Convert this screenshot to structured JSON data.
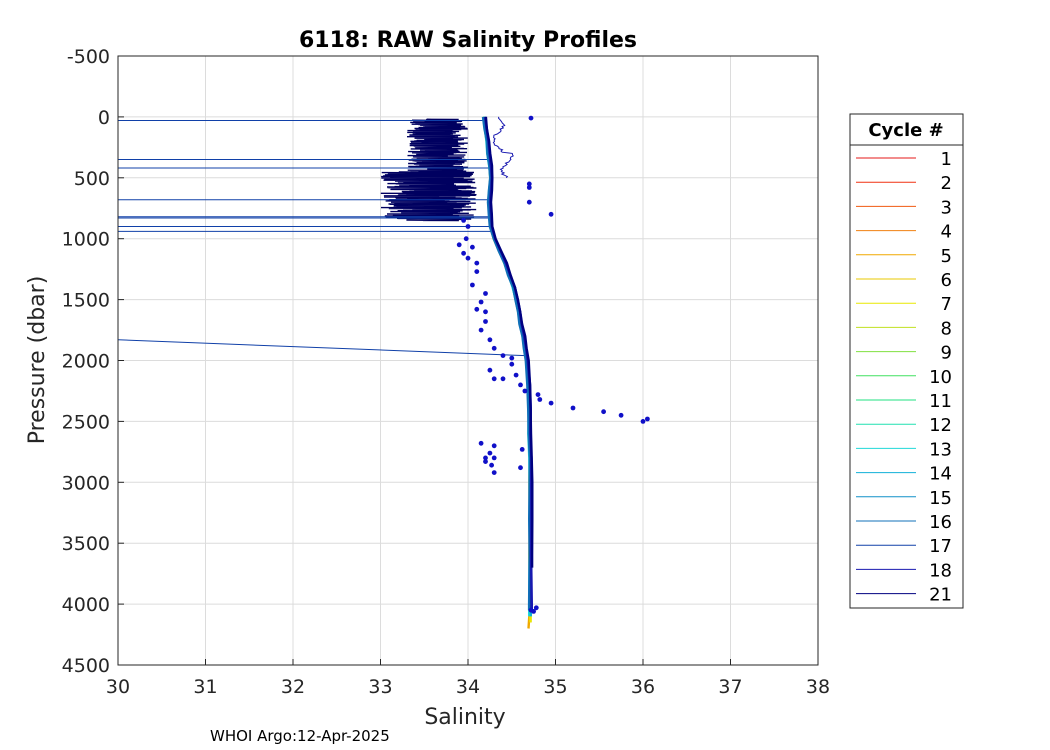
{
  "chart_data": {
    "type": "line",
    "title": "6118: RAW Salinity Profiles",
    "xlabel": "Salinity",
    "ylabel": "Pressure (dbar)",
    "xlim": [
      30,
      38
    ],
    "ylim": [
      -500,
      4500
    ],
    "y_reversed": true,
    "xticks": [
      30,
      31,
      32,
      33,
      34,
      35,
      36,
      37,
      38
    ],
    "yticks": [
      -500,
      0,
      500,
      1000,
      1500,
      2000,
      2500,
      3000,
      3500,
      4000,
      4500
    ],
    "grid": true,
    "legend_title": "Cycle #",
    "legend_position": "right",
    "footer": "WHOI Argo:12-Apr-2025",
    "mean_profile": [
      [
        34.18,
        0
      ],
      [
        34.2,
        100
      ],
      [
        34.22,
        200
      ],
      [
        34.23,
        300
      ],
      [
        34.25,
        400
      ],
      [
        34.26,
        500
      ],
      [
        34.25,
        600
      ],
      [
        34.24,
        700
      ],
      [
        34.25,
        800
      ],
      [
        34.26,
        900
      ],
      [
        34.3,
        1000
      ],
      [
        34.36,
        1100
      ],
      [
        34.42,
        1200
      ],
      [
        34.47,
        1300
      ],
      [
        34.52,
        1400
      ],
      [
        34.55,
        1500
      ],
      [
        34.58,
        1600
      ],
      [
        34.6,
        1700
      ],
      [
        34.63,
        1800
      ],
      [
        34.65,
        1900
      ],
      [
        34.67,
        2000
      ],
      [
        34.69,
        2200
      ],
      [
        34.7,
        2400
      ],
      [
        34.7,
        2600
      ],
      [
        34.71,
        2800
      ],
      [
        34.71,
        3000
      ],
      [
        34.71,
        3300
      ],
      [
        34.71,
        3600
      ],
      [
        34.71,
        4000
      ],
      [
        34.7,
        4200
      ]
    ],
    "series": [
      {
        "name": "1",
        "color": "#e41a1a",
        "max_pressure": 1000,
        "offset": 0.0
      },
      {
        "name": "2",
        "color": "#f03010",
        "max_pressure": 1000,
        "offset": 0.005
      },
      {
        "name": "3",
        "color": "#f05a10",
        "max_pressure": 1000,
        "offset": -0.005
      },
      {
        "name": "4",
        "color": "#f08010",
        "max_pressure": 1100,
        "offset": 0.008
      },
      {
        "name": "5",
        "color": "#f0a800",
        "max_pressure": 4200,
        "offset": -0.004
      },
      {
        "name": "6",
        "color": "#e8c800",
        "max_pressure": 4150,
        "offset": 0.003
      },
      {
        "name": "7",
        "color": "#e8e800",
        "max_pressure": 4150,
        "offset": 0.0
      },
      {
        "name": "8",
        "color": "#c0e020",
        "max_pressure": 4100,
        "offset": -0.003
      },
      {
        "name": "9",
        "color": "#80e040",
        "max_pressure": 4100,
        "offset": 0.004
      },
      {
        "name": "10",
        "color": "#40e060",
        "max_pressure": 4100,
        "offset": -0.002
      },
      {
        "name": "11",
        "color": "#20e080",
        "max_pressure": 4100,
        "offset": 0.002
      },
      {
        "name": "12",
        "color": "#20e0b0",
        "max_pressure": 4100,
        "offset": 0.006
      },
      {
        "name": "13",
        "color": "#20d8d8",
        "max_pressure": 4100,
        "offset": -0.006
      },
      {
        "name": "14",
        "color": "#10b0d8",
        "max_pressure": 4100,
        "offset": 0.007
      },
      {
        "name": "15",
        "color": "#1090c8",
        "max_pressure": 4050,
        "offset": 0.01
      },
      {
        "name": "16",
        "color": "#1070b8",
        "max_pressure": 4050,
        "offset": -0.008
      },
      {
        "name": "17",
        "color": "#1040a8",
        "max_pressure": 4050,
        "offset": 0.012
      },
      {
        "name": "18",
        "color": "#1818b0",
        "max_pressure": 4050,
        "offset": 0.015
      },
      {
        "name": "21",
        "color": "#000080",
        "max_pressure": 3700,
        "offset": 0.02
      }
    ],
    "spurious_lines": [
      {
        "p": 30,
        "s": 30.0,
        "to_s": 34.2
      },
      {
        "p": 350,
        "s": 30.0,
        "to_s": 34.24
      },
      {
        "p": 420,
        "s": 30.0,
        "to_s": 34.25
      },
      {
        "p": 680,
        "s": 30.0,
        "to_s": 34.24
      },
      {
        "p": 820,
        "s": 30.0,
        "to_s": 34.25
      },
      {
        "p": 830,
        "s": 30.0,
        "to_s": 34.25
      },
      {
        "p": 900,
        "s": 30.0,
        "to_s": 34.26
      },
      {
        "p": 940,
        "s": 30.0,
        "to_s": 34.27
      },
      {
        "p": 1830,
        "s": 30.0,
        "to_p": 1960,
        "to_s": 34.66
      }
    ],
    "noise_bands": [
      {
        "p_from": 20,
        "p_to": 450,
        "s_from": 33.3,
        "s_to": 34.0
      },
      {
        "p_from": 450,
        "p_to": 850,
        "s_from": 33.0,
        "s_to": 34.1
      }
    ],
    "scatter_points": [
      [
        34.72,
        10
      ],
      [
        34.7,
        550
      ],
      [
        34.7,
        580
      ],
      [
        34.7,
        700
      ],
      [
        34.95,
        800
      ],
      [
        33.95,
        850
      ],
      [
        34.0,
        900
      ],
      [
        33.98,
        1000
      ],
      [
        33.9,
        1050
      ],
      [
        34.05,
        1070
      ],
      [
        33.95,
        1120
      ],
      [
        34.0,
        1160
      ],
      [
        34.1,
        1200
      ],
      [
        34.1,
        1270
      ],
      [
        34.05,
        1380
      ],
      [
        34.2,
        1450
      ],
      [
        34.15,
        1520
      ],
      [
        34.2,
        1600
      ],
      [
        34.1,
        1580
      ],
      [
        34.2,
        1680
      ],
      [
        34.15,
        1750
      ],
      [
        34.25,
        1830
      ],
      [
        34.3,
        1900
      ],
      [
        34.4,
        1960
      ],
      [
        34.5,
        1980
      ],
      [
        34.5,
        2030
      ],
      [
        34.25,
        2080
      ],
      [
        34.3,
        2150
      ],
      [
        34.4,
        2150
      ],
      [
        34.55,
        2120
      ],
      [
        34.6,
        2200
      ],
      [
        34.65,
        2250
      ],
      [
        34.8,
        2280
      ],
      [
        34.82,
        2320
      ],
      [
        34.95,
        2350
      ],
      [
        35.2,
        2390
      ],
      [
        35.55,
        2420
      ],
      [
        35.75,
        2450
      ],
      [
        36.0,
        2500
      ],
      [
        36.05,
        2480
      ],
      [
        34.15,
        2680
      ],
      [
        34.3,
        2700
      ],
      [
        34.25,
        2760
      ],
      [
        34.2,
        2800
      ],
      [
        34.3,
        2800
      ],
      [
        34.2,
        2830
      ],
      [
        34.27,
        2860
      ],
      [
        34.3,
        2920
      ],
      [
        34.62,
        2730
      ],
      [
        34.6,
        2880
      ],
      [
        34.72,
        4050
      ],
      [
        34.78,
        4030
      ],
      [
        34.75,
        4060
      ]
    ]
  }
}
